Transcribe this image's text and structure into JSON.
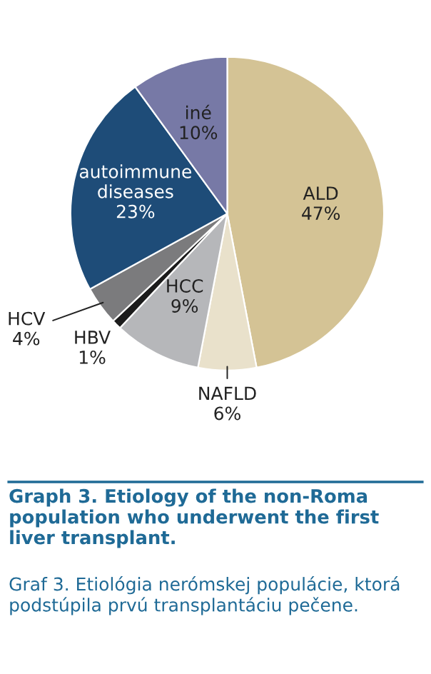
{
  "chart_data": {
    "type": "pie",
    "categories": [
      "ALD",
      "NAFLD",
      "HCC",
      "HBV",
      "HCV",
      "autoimmune\ndiseases",
      "iné"
    ],
    "values": [
      47,
      6,
      9,
      1,
      4,
      23,
      10
    ],
    "value_labels": [
      "47%",
      "6%",
      "9%",
      "1%",
      "4%",
      "23%",
      "10%"
    ],
    "colors": [
      "#d4c395",
      "#e9e1cb",
      "#b6b7ba",
      "#1b1b1b",
      "#7b7b7d",
      "#1e4c78",
      "#7779a6"
    ],
    "title": "Graph 3. Etiology of the non-Roma population who underwent the first liver transplant.",
    "subtitle": "Graf 3. Etiológia nerómskej populácie, ktorá podstúpila prvú transplantáciu pečene."
  }
}
